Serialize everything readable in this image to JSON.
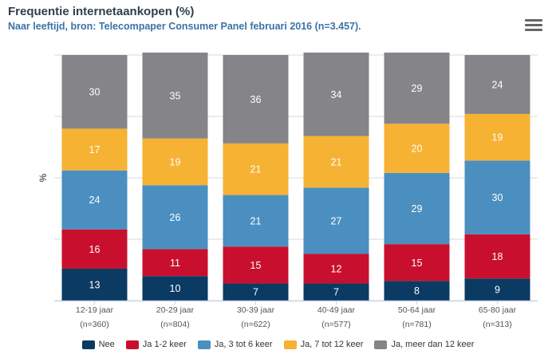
{
  "chart_data": {
    "type": "bar",
    "stacked": true,
    "title": "Frequentie internetaankopen (%)",
    "subtitle": "Naar leeftijd, bron: Telecompaper Consumer Panel februari 2016 (n=3.457).",
    "ylabel": "%",
    "ylim": [
      0,
      100
    ],
    "grid": true,
    "legend_position": "bottom",
    "categories": [
      {
        "label": "12-19 jaar",
        "n": "(n=360)"
      },
      {
        "label": "20-29 jaar",
        "n": "(n=804)"
      },
      {
        "label": "30-39 jaar",
        "n": "(n=622)"
      },
      {
        "label": "40-49 jaar",
        "n": "(n=577)"
      },
      {
        "label": "50-64 jaar",
        "n": "(n=781)"
      },
      {
        "label": "65-80 jaar",
        "n": "(n=313)"
      }
    ],
    "series": [
      {
        "name": "Nee",
        "color": "#0b3a62",
        "values": [
          13,
          10,
          7,
          7,
          8,
          9
        ]
      },
      {
        "name": "Ja 1-2 keer",
        "color": "#c8102e",
        "values": [
          16,
          11,
          15,
          12,
          15,
          18
        ]
      },
      {
        "name": "Ja, 3 tot 6 keer",
        "color": "#4a8fc0",
        "values": [
          24,
          26,
          21,
          27,
          29,
          30
        ]
      },
      {
        "name": "Ja, 7 tot 12 keer",
        "color": "#f6b233",
        "values": [
          17,
          19,
          21,
          21,
          20,
          19
        ]
      },
      {
        "name": "Ja, meer dan 12 keer",
        "color": "#858589",
        "values": [
          30,
          35,
          36,
          34,
          29,
          24
        ]
      }
    ]
  }
}
